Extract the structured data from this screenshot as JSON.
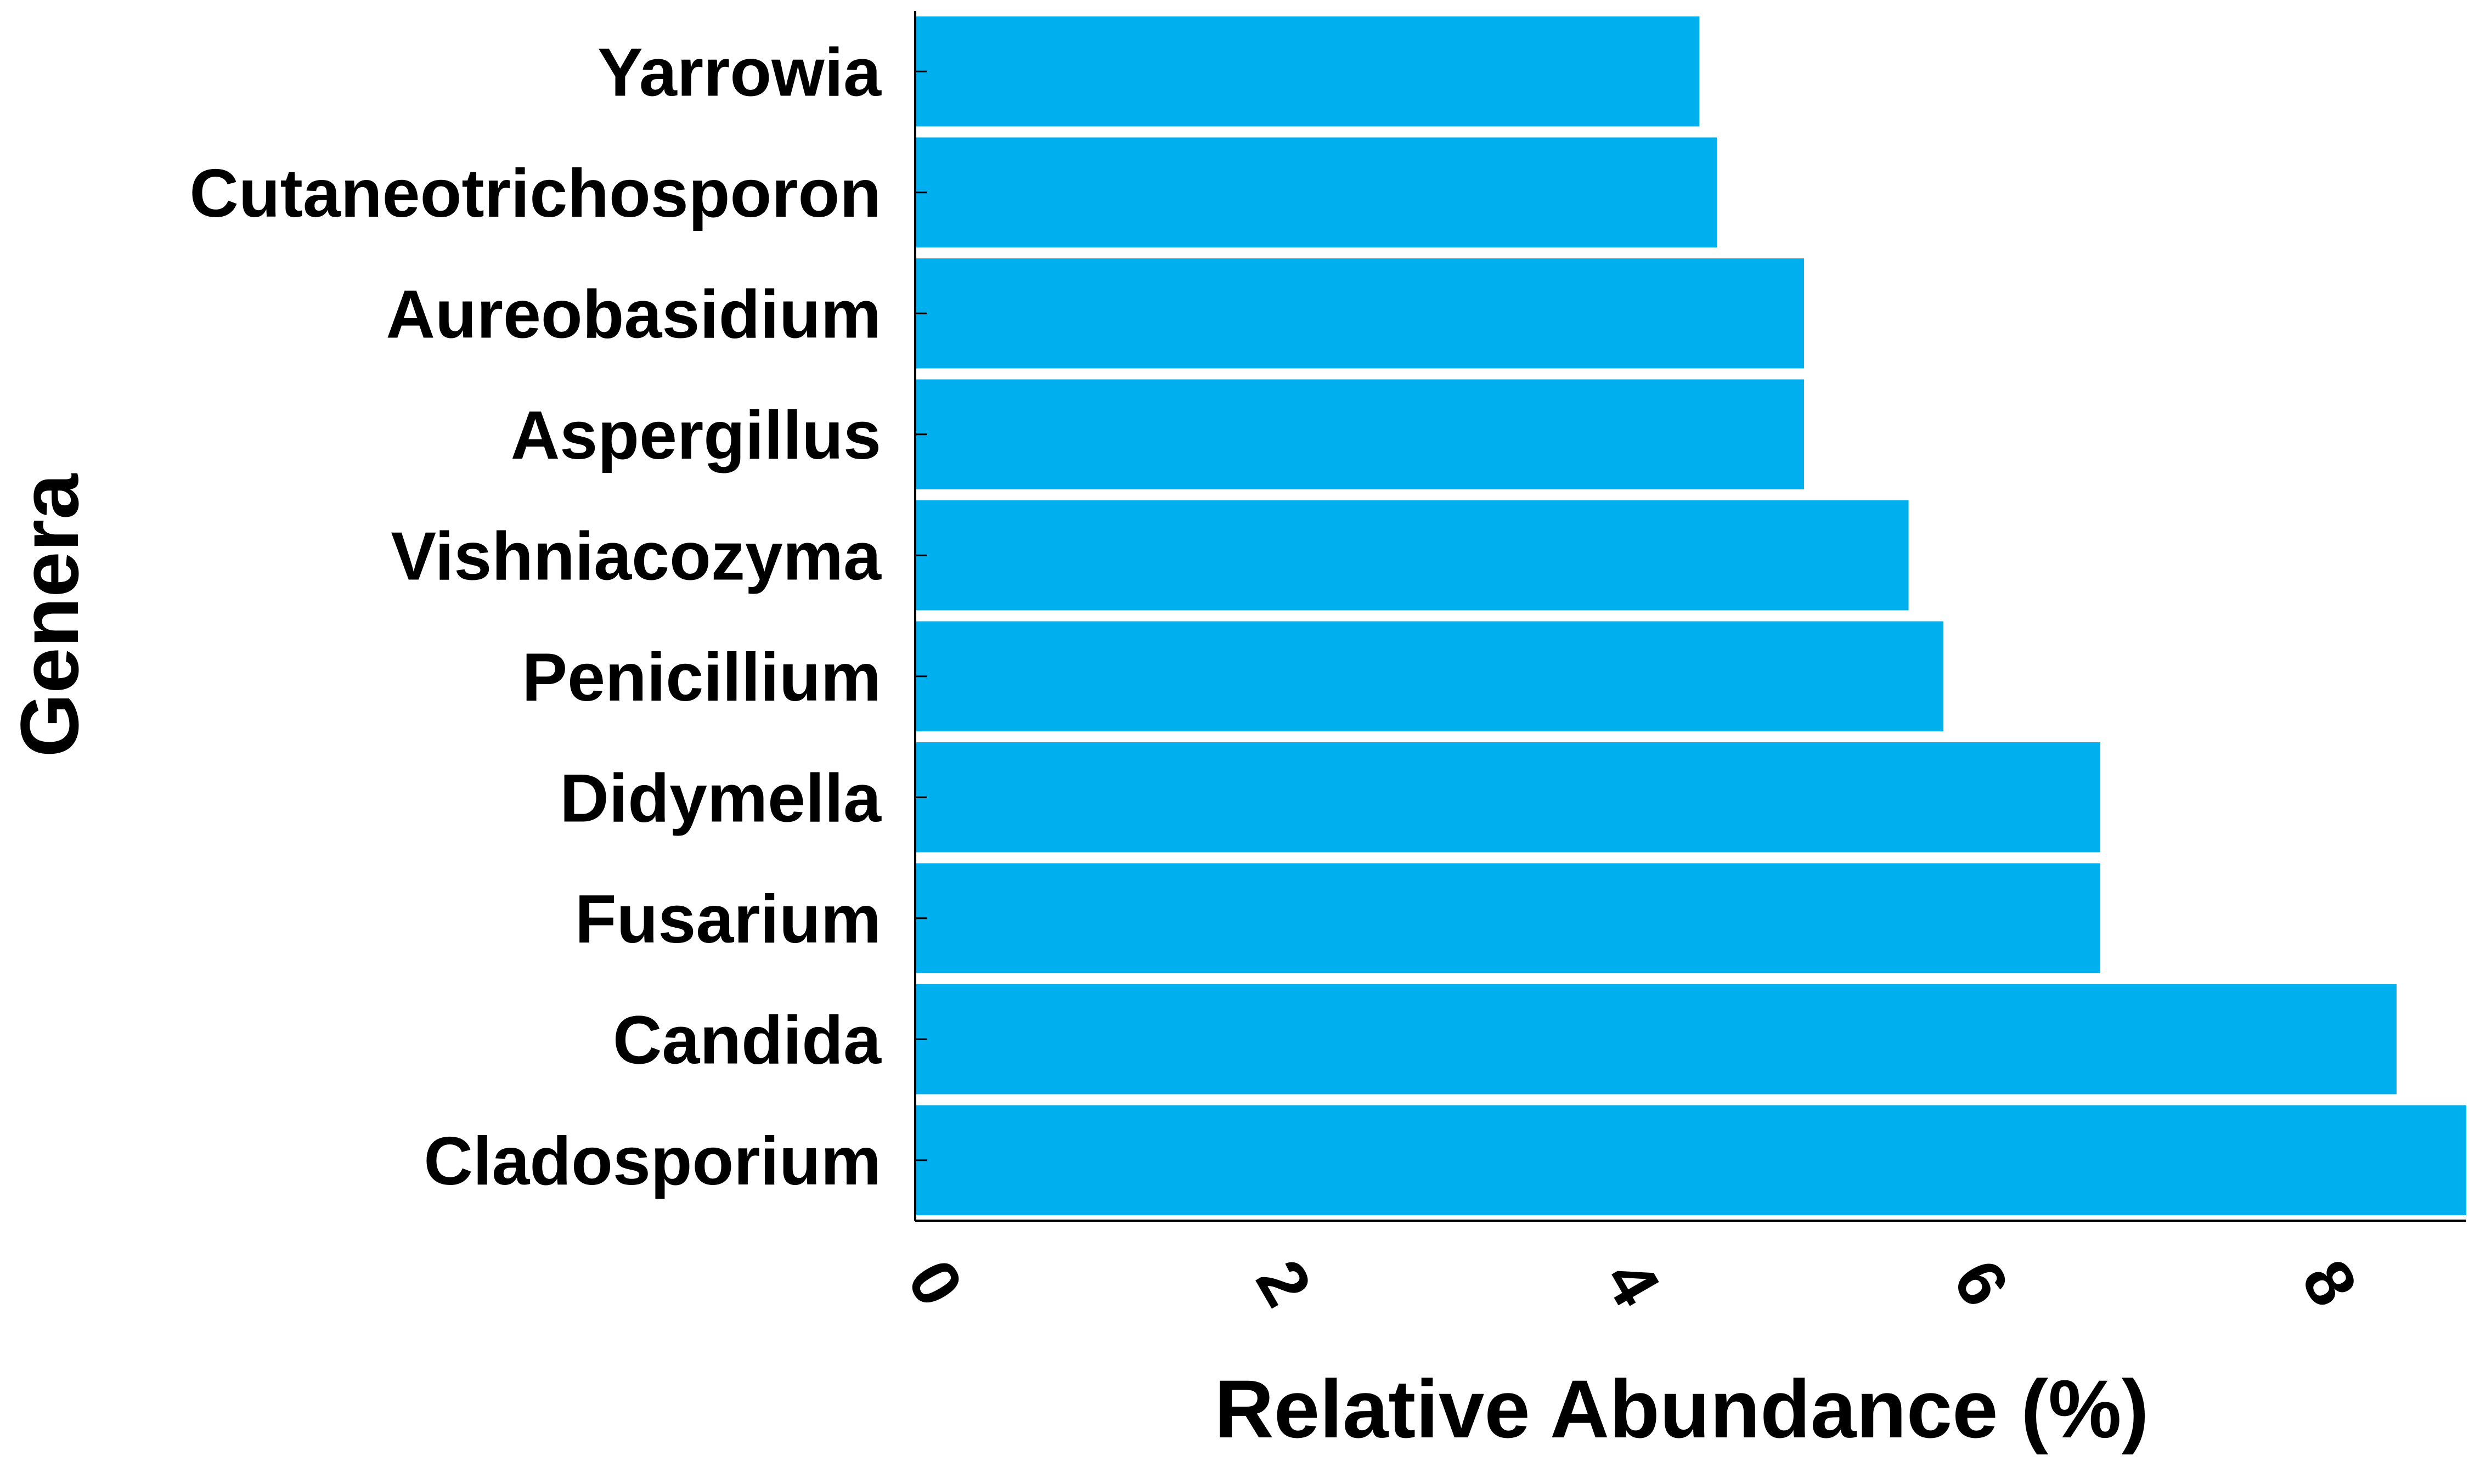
{
  "chart_data": {
    "type": "bar",
    "orientation": "horizontal",
    "categories": [
      "Cladosporium",
      "Candida",
      "Fusarium",
      "Didymella",
      "Penicillium",
      "Vishniacozyma",
      "Aspergillus",
      "Aureobasidium",
      "Cutaneotrichosporon",
      "Yarrowia"
    ],
    "values": [
      8.9,
      8.5,
      6.8,
      6.8,
      5.9,
      5.7,
      5.1,
      5.1,
      4.6,
      4.5
    ],
    "title": "",
    "xlabel": "Relative Abundance (%)",
    "ylabel": "Genera",
    "xlim": [
      0,
      8.9
    ],
    "xticks": [
      0,
      2,
      4,
      6,
      8
    ],
    "xtick_labels": [
      "0",
      "2",
      "4",
      "6",
      "8"
    ],
    "bar_color": "#00B0EE",
    "grid": false,
    "legend": "none"
  }
}
